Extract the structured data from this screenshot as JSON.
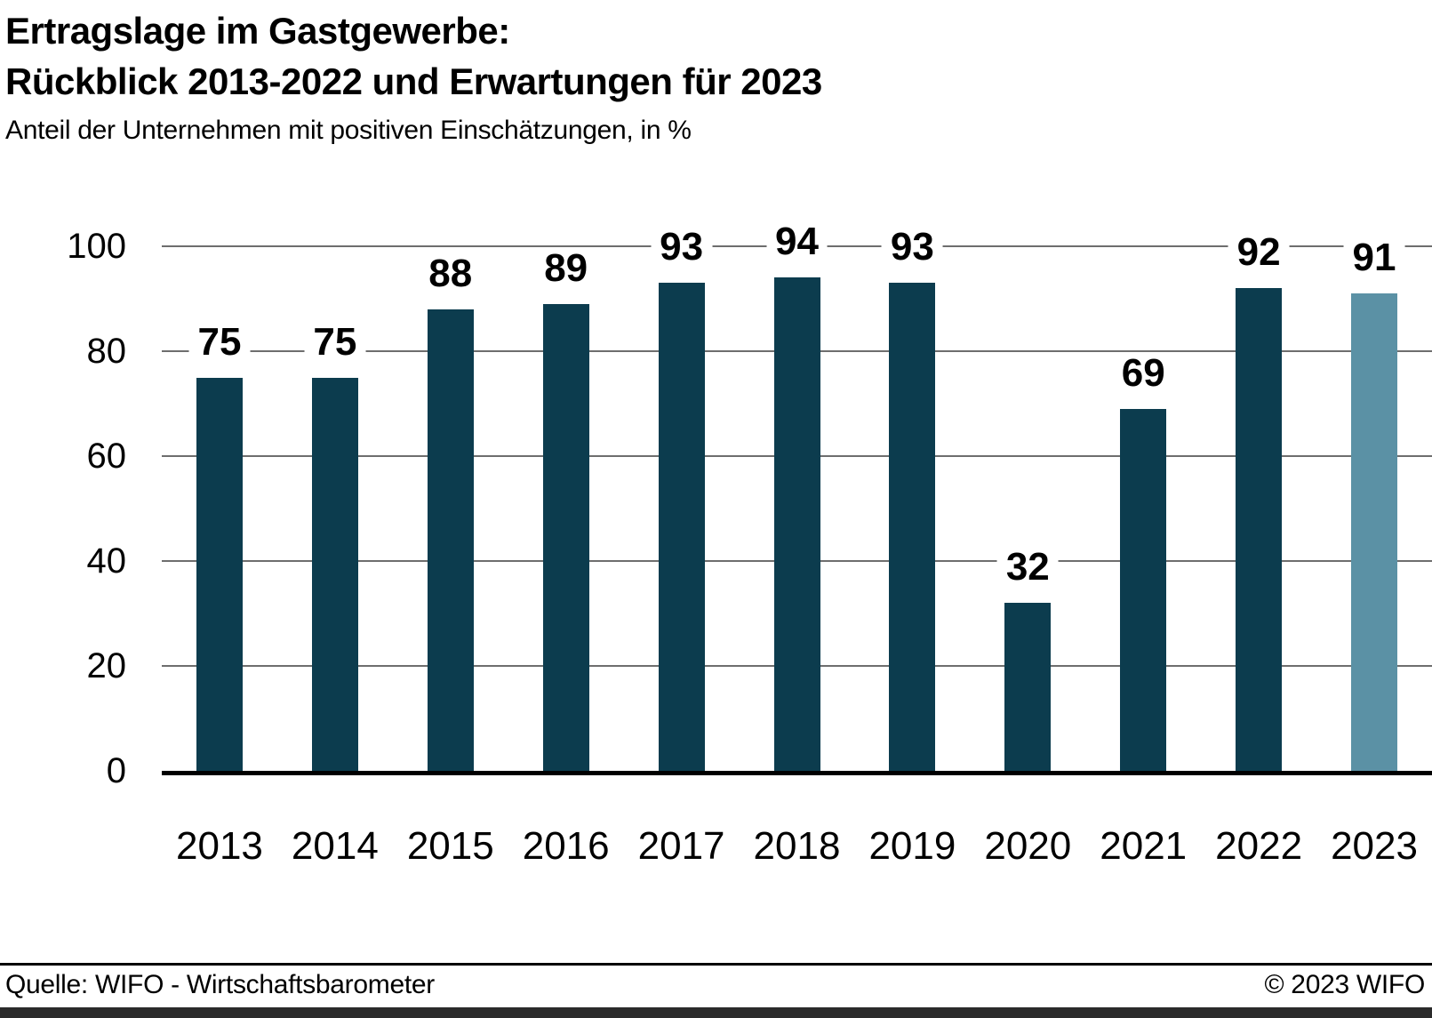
{
  "header": {
    "title_line1": "Ertragslage im Gastgewerbe:",
    "title_line2": "Rückblick 2013-2022 und Erwartungen für 2023",
    "subtitle": "Anteil der Unternehmen mit positiven Einschätzungen, in %"
  },
  "chart_data": {
    "type": "bar",
    "title": "Ertragslage im Gastgewerbe: Rückblick 2013-2022 und Erwartungen für 2023",
    "subtitle": "Anteil der Unternehmen mit positiven Einschätzungen, in %",
    "categories": [
      "2013",
      "2014",
      "2015",
      "2016",
      "2017",
      "2018",
      "2019",
      "2020",
      "2021",
      "2022",
      "2023"
    ],
    "values": [
      75,
      75,
      88,
      89,
      93,
      94,
      93,
      32,
      69,
      92,
      91
    ],
    "unit": "%",
    "xlabel": "",
    "ylabel": "",
    "ylim": [
      0,
      100
    ],
    "yticks": [
      0,
      20,
      40,
      60,
      80,
      100
    ],
    "grid": true,
    "legend": false,
    "data_labels": true,
    "highlight_index": 10,
    "highlight_category": "2023",
    "colors": {
      "bar": "#0c3c4e",
      "highlight": "#5b91a5",
      "gridline": "#6e6e6e",
      "baseline": "#000000"
    }
  },
  "footer": {
    "source": "Quelle: WIFO - Wirtschaftsbarometer",
    "copyright": "© 2023 WIFO"
  }
}
